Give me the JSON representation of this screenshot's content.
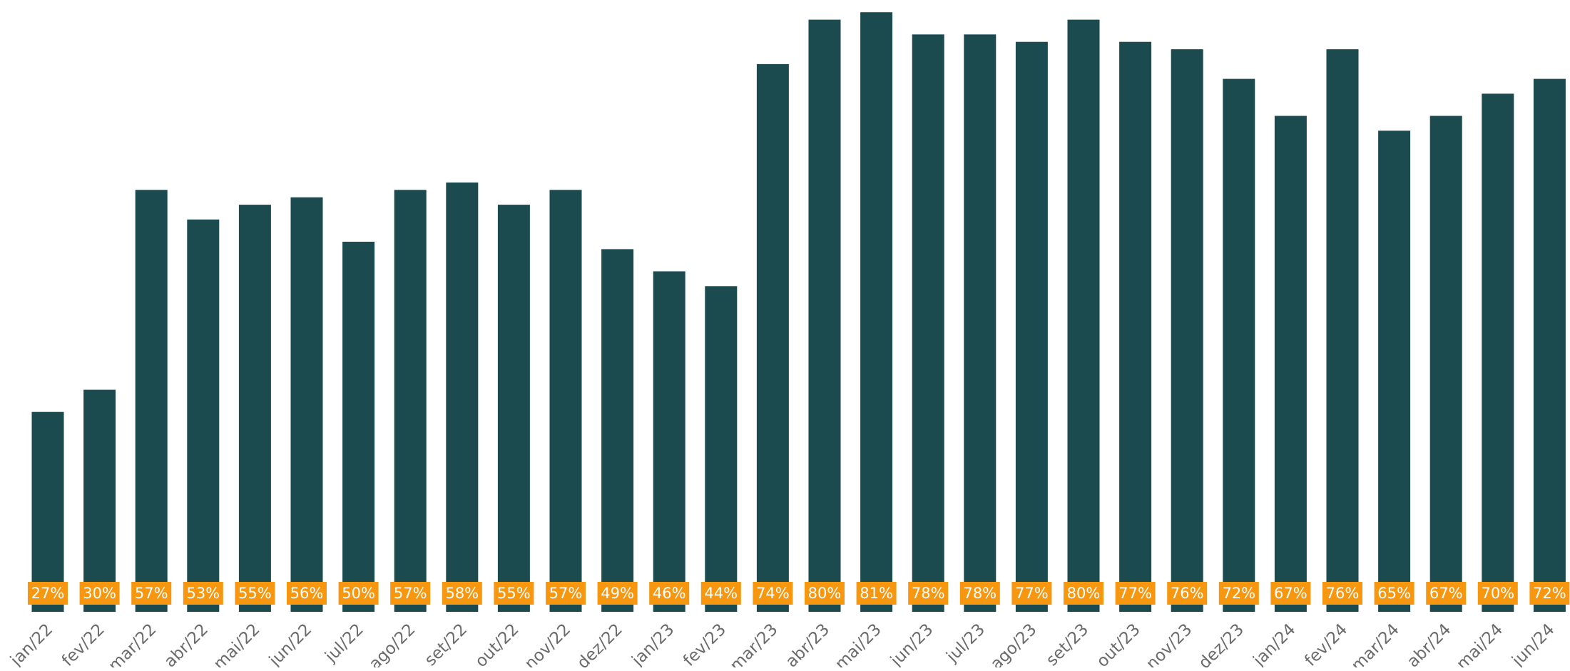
{
  "chart_data": {
    "type": "bar",
    "title": "",
    "xlabel": "",
    "ylabel": "",
    "categories": [
      "jan/22",
      "fev/22",
      "mar/22",
      "abr/22",
      "mai/22",
      "jun/22",
      "jul/22",
      "ago/22",
      "set/22",
      "out/22",
      "nov/22",
      "dez/22",
      "jan/23",
      "fev/23",
      "mar/23",
      "abr/23",
      "mai/23",
      "jun/23",
      "jul/23",
      "ago/23",
      "set/23",
      "out/23",
      "nov/23",
      "dez/23",
      "jan/24",
      "fev/24",
      "mar/24",
      "abr/24",
      "mai/24",
      "jun/24"
    ],
    "values": [
      27,
      30,
      57,
      53,
      55,
      56,
      50,
      57,
      58,
      55,
      57,
      49,
      46,
      44,
      74,
      80,
      81,
      78,
      78,
      77,
      80,
      77,
      76,
      72,
      67,
      76,
      65,
      67,
      70,
      72
    ],
    "value_labels": [
      "27%",
      "30%",
      "57%",
      "53%",
      "55%",
      "56%",
      "50%",
      "57%",
      "58%",
      "55%",
      "57%",
      "49%",
      "46%",
      "44%",
      "74%",
      "80%",
      "81%",
      "78%",
      "78%",
      "77%",
      "80%",
      "77%",
      "76%",
      "72%",
      "67%",
      "76%",
      "65%",
      "67%",
      "70%",
      "72%"
    ],
    "value_unit": "%",
    "ylim": [
      0,
      81.5
    ],
    "grid": false,
    "legend": "none",
    "colors": {
      "bar": "#1b4a4f",
      "label_background": "#f7960f",
      "label_text": "#ffffff",
      "tick_text": "#6b6b6b"
    }
  }
}
